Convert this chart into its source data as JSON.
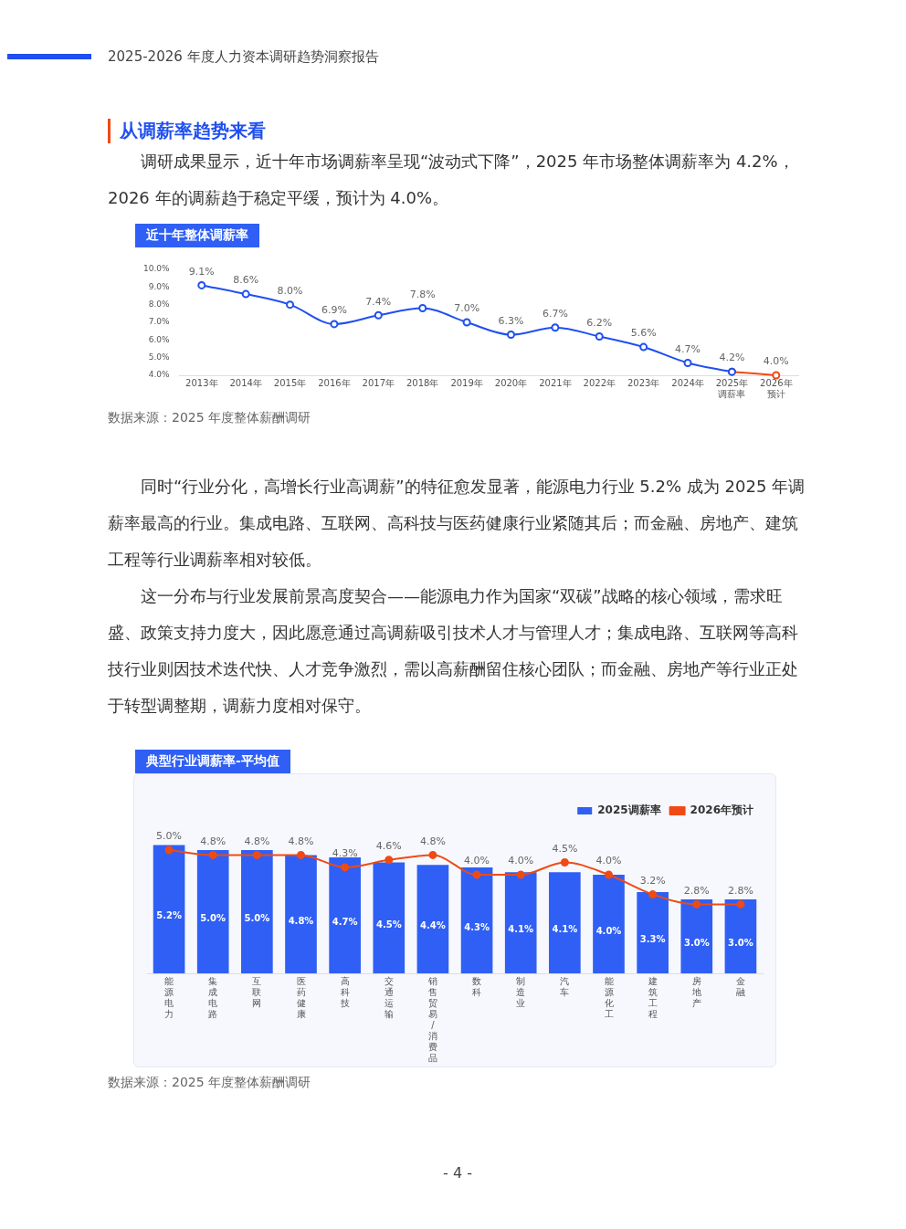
{
  "chart_data": [
    {
      "type": "line",
      "title": "近十年整体调薪率",
      "annotations": [
        "2025-2026 年度人力资本调研趋势洞察报告",
        "从调薪率趋势来看",
        "调研成果显示，近十年市场调薪率呈现“波动式下降”，2025 年市场整体调薪率为 4.2%，2026 年的调薪趋于稳定平缓，预计为 4.0%。",
        "数据来源：2025 年度整体薪酬调研"
      ],
      "categories": [
        "2013年",
        "2014年",
        "2015年",
        "2016年",
        "2017年",
        "2018年",
        "2019年",
        "2020年",
        "2021年",
        "2022年",
        "2023年",
        "2024年",
        "2025年调薪率",
        "2026年预计"
      ],
      "series": [
        {
          "color": "#1f4ff0",
          "values": [
            9.1,
            8.6,
            8.0,
            6.9,
            7.4,
            7.8,
            7.0,
            6.3,
            6.7,
            6.2,
            5.6,
            4.7,
            4.2,
            null
          ],
          "value_labels": [
            "9.1%",
            "8.6%",
            "8.0%",
            "6.9%",
            "7.4%",
            "7.8%",
            "7.0%",
            "6.3%",
            "6.7%",
            "6.2%",
            "5.6%",
            "4.7%",
            "4.2%",
            null
          ]
        },
        {
          "color": "#f04a14",
          "values": [
            null,
            null,
            null,
            null,
            null,
            null,
            null,
            null,
            null,
            null,
            null,
            null,
            4.2,
            4.0
          ],
          "value_labels": [
            null,
            null,
            null,
            null,
            null,
            null,
            null,
            null,
            null,
            null,
            null,
            null,
            null,
            "4.0%"
          ]
        }
      ],
      "ylim": [
        4,
        10
      ],
      "yticks": [
        {
          "value": 4,
          "label": "4.0%"
        },
        {
          "value": 5,
          "label": "5.0%"
        },
        {
          "value": 6,
          "label": "6.0%"
        },
        {
          "value": 7,
          "label": "7.0%"
        },
        {
          "value": 8,
          "label": "8.0%"
        },
        {
          "value": 9,
          "label": "9.0%"
        },
        {
          "value": 10,
          "label": "10.0%"
        }
      ],
      "grid": false,
      "legend": false,
      "marker": "circle",
      "line_style": "solid"
    },
    {
      "type": "bar",
      "title": "典型行业调薪率-平均值",
      "annotations": [
        "同时“行业分化，高增长行业高调薪”的特征愈发显著，能源电力行业 5.2% 成为 2025 年调薪率最高的行业。集成电路、互联网、高科技与医药健康行业紧随其后；而金融、房地产、建筑工程等行业调薪率相对较低。",
        "这一分布与行业发展前景高度契合——能源电力作为国家“双碳”战略的核心领域，需求旺盛、政策支持力度大，因此愿意通过高调薪吸引技术人才与管理人才；集成电路、互联网等高科技行业则因技术迭代快、人才竞争激烈，需以高薪酬留住核心团队；而金融、房地产等行业正处于转型调整期，调薪力度相对保守。",
        "数据来源：2025 年度整体薪酬调研",
        "- 4 -"
      ],
      "categories": [
        "能源电力",
        "集成电路",
        "互联网",
        "医药健康",
        "高科技",
        "交通运输",
        "销售贸易/消费品",
        "数科",
        "制造业",
        "汽车",
        "能源化工",
        "建筑工程",
        "房地产",
        "金融"
      ],
      "series": [
        {
          "name": "2025调薪率",
          "type": "bar",
          "color": "#2f5ff5",
          "values": [
            5.2,
            5.0,
            5.0,
            4.8,
            4.7,
            4.5,
            4.4,
            4.3,
            4.1,
            4.1,
            4.0,
            3.3,
            3.0,
            3.0
          ],
          "value_labels": [
            "5.2%",
            "5.0%",
            "5.0%",
            "4.8%",
            "4.7%",
            "4.5%",
            "4.4%",
            "4.3%",
            "4.1%",
            "4.1%",
            "4.0%",
            "3.3%",
            "3.0%",
            "3.0%"
          ]
        },
        {
          "name": "2026年预计",
          "type": "line",
          "color": "#f04a14",
          "values": [
            5.0,
            4.8,
            4.8,
            4.8,
            4.3,
            4.6,
            4.8,
            4.0,
            4.0,
            4.5,
            4.0,
            3.2,
            2.8,
            2.8
          ],
          "value_labels": [
            "5.0%",
            "4.8%",
            "4.8%",
            "4.8%",
            "4.3%",
            "4.6%",
            "4.8%",
            "4.0%",
            "4.0%",
            "4.5%",
            "4.0%",
            "3.2%",
            "2.8%",
            "2.8%"
          ]
        }
      ],
      "tick_labels": "x",
      "grid": false,
      "legend": "top right",
      "marker": "circle",
      "line_style": "solid"
    }
  ]
}
